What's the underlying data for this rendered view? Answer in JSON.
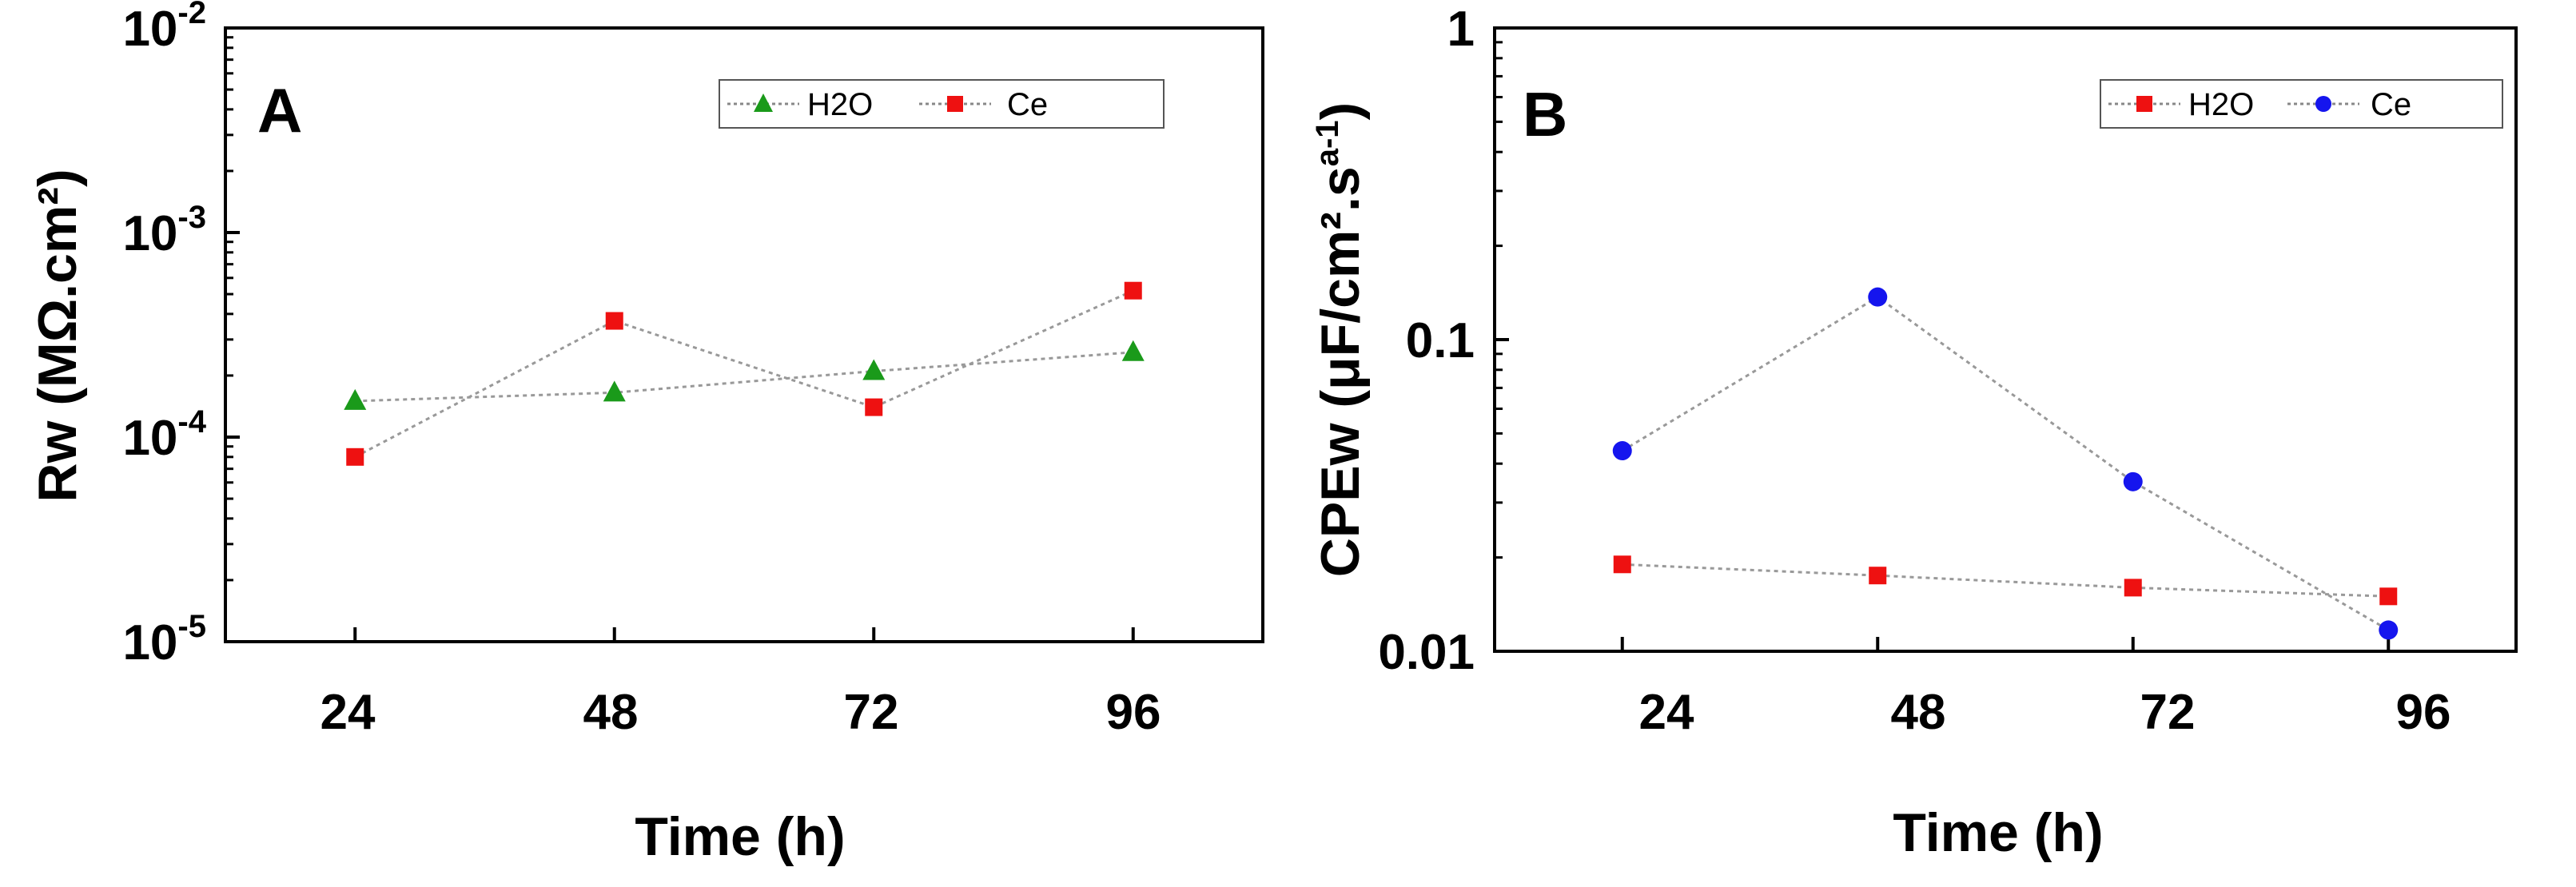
{
  "chart_data": [
    {
      "type": "line",
      "panel_label": "A",
      "xlabel": "Time (h)",
      "ylabel": "Rw (MΩ.cm²)",
      "yscale": "log",
      "x_ticks": [
        24,
        48,
        72,
        96
      ],
      "xlim": [
        12,
        108
      ],
      "ylim": [
        1e-05,
        0.01
      ],
      "y_tick_labels": [
        {
          "base": "10",
          "exp": "-2"
        },
        {
          "base": "10",
          "exp": "-3"
        },
        {
          "base": "10",
          "exp": "-4"
        },
        {
          "base": "10",
          "exp": "-5"
        }
      ],
      "legend_position": "top-right",
      "series": [
        {
          "name": "H2O",
          "marker": "triangle",
          "color": "#1a9a1a",
          "x": [
            24,
            48,
            72,
            96
          ],
          "values": [
            0.00015,
            0.000165,
            0.00021,
            0.00026
          ]
        },
        {
          "name": "Ce",
          "marker": "square",
          "color": "#ee1111",
          "x": [
            24,
            48,
            72,
            96
          ],
          "values": [
            8e-05,
            0.00037,
            0.00014,
            0.00052
          ]
        }
      ]
    },
    {
      "type": "line",
      "panel_label": "B",
      "xlabel": "Time (h)",
      "ylabel_main": "CPEw (μF/cm².s",
      "ylabel_sup": "a-1",
      "ylabel_close": ")",
      "yscale": "log",
      "x_ticks": [
        24,
        48,
        72,
        96
      ],
      "xlim": [
        12,
        108
      ],
      "ylim": [
        0.01,
        1
      ],
      "y_tick_labels": [
        "1",
        "0.1",
        "0.01"
      ],
      "legend_position": "top-right",
      "series": [
        {
          "name": "H2O",
          "marker": "square",
          "color": "#ee1111",
          "x": [
            24,
            48,
            72,
            96
          ],
          "values": [
            0.019,
            0.0175,
            0.016,
            0.015
          ]
        },
        {
          "name": "Ce",
          "marker": "circle",
          "color": "#1515ee",
          "x": [
            24,
            48,
            72,
            96
          ],
          "values": [
            0.044,
            0.137,
            0.035,
            0.0117
          ]
        }
      ]
    }
  ]
}
